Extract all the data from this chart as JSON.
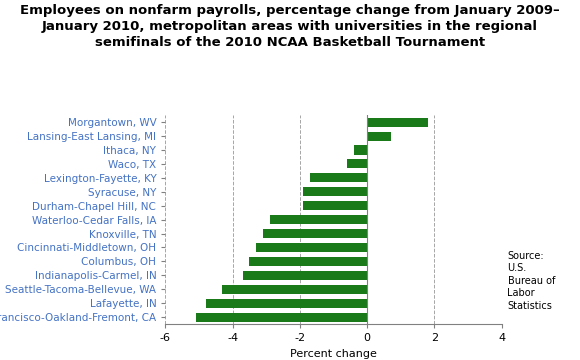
{
  "title": "Employees on nonfarm payrolls, percentage change from January 2009–\nJanuary 2010, metropolitan areas with universities in the regional\nsemifinals of the 2010 NCAA Basketball Tournament",
  "categories": [
    "San Francisco-Oakland-Fremont, CA",
    "Lafayette, IN",
    "Seattle-Tacoma-Bellevue, WA",
    "Indianapolis-Carmel, IN",
    "Columbus, OH",
    "Cincinnati-Middletown, OH",
    "Knoxville, TN",
    "Waterloo-Cedar Falls, IA",
    "Durham-Chapel Hill, NC",
    "Syracuse, NY",
    "Lexington-Fayette, KY",
    "Waco, TX",
    "Ithaca, NY",
    "Lansing-East Lansing, MI",
    "Morgantown, WV"
  ],
  "values": [
    -5.1,
    -4.8,
    -4.3,
    -3.7,
    -3.5,
    -3.3,
    -3.1,
    -2.9,
    -1.9,
    -1.9,
    -1.7,
    -0.6,
    -0.4,
    0.7,
    1.8
  ],
  "bar_color": "#1a7a1a",
  "xlabel": "Percent change",
  "xlim": [
    -6,
    4
  ],
  "xticks": [
    -6,
    -4,
    -2,
    0,
    2,
    4
  ],
  "source_text": "Source:\nU.S.\nBureau of\nLabor\nStatistics",
  "title_fontsize": 9.5,
  "label_fontsize": 7.5,
  "tick_fontsize": 8
}
